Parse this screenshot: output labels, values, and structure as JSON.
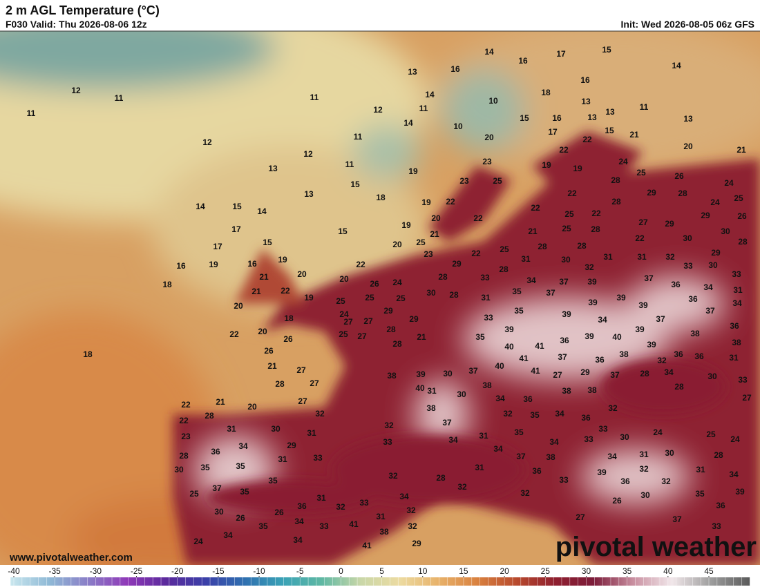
{
  "header": {
    "title": "2 m AGL Temperature (°C)",
    "valid": "F030 Valid: Thu 2026-08-06 12z",
    "init": "Init: Wed 2026-08-05 06z GFS"
  },
  "map": {
    "point_labels": [
      12,
      11,
      11,
      11,
      12,
      12,
      12,
      13,
      13,
      14,
      15,
      14,
      17,
      17,
      15,
      15,
      16,
      19,
      16,
      19,
      18,
      21,
      20,
      21,
      22,
      20,
      19,
      18,
      18,
      20,
      22,
      26,
      26,
      21,
      27,
      27,
      28,
      27,
      22,
      21,
      20,
      28,
      22,
      23,
      31,
      30,
      31,
      32,
      36,
      34,
      29,
      28,
      31,
      33,
      30,
      35,
      35,
      35,
      37,
      35,
      25,
      30,
      26,
      26,
      36,
      31,
      32,
      33,
      31,
      34,
      35,
      33,
      41,
      34,
      24,
      34,
      38,
      41,
      32,
      29,
      34,
      32,
      32,
      33,
      32,
      31,
      40,
      38,
      39,
      30,
      37,
      38,
      38,
      37,
      30,
      34,
      31,
      34,
      35,
      37,
      28,
      32,
      31,
      34,
      36,
      32,
      35,
      34,
      36,
      32,
      33,
      30,
      34,
      33,
      38,
      36,
      33,
      32,
      39,
      34,
      36,
      31,
      32,
      30,
      32,
      24,
      30,
      31,
      28,
      25,
      24,
      34,
      35,
      39,
      36,
      37,
      26,
      27,
      33,
      25,
      24,
      25,
      25,
      26,
      25,
      24,
      22,
      20,
      27,
      27,
      27,
      28,
      29,
      29,
      28,
      21,
      30,
      28,
      28,
      29,
      33,
      28,
      31,
      35,
      34,
      37,
      37,
      39,
      39,
      39,
      39,
      39,
      37,
      37,
      34,
      39,
      33,
      35,
      35,
      39,
      41,
      36,
      39,
      40,
      38,
      39,
      32,
      40,
      41,
      40,
      41,
      37,
      36,
      27,
      29,
      37,
      38,
      38,
      28,
      34,
      36,
      36,
      38,
      31,
      30,
      33,
      27,
      28,
      36,
      38,
      37,
      34,
      36,
      34,
      36,
      31,
      33,
      33,
      30,
      32,
      31,
      31,
      32,
      30,
      31,
      28,
      28,
      28,
      25,
      21,
      22,
      25,
      22,
      25,
      22,
      28,
      22,
      28,
      29,
      28,
      24,
      25,
      29,
      29,
      27,
      22,
      30,
      30,
      26,
      28,
      29,
      26,
      24,
      25,
      24,
      19,
      19,
      22,
      22,
      15,
      21,
      17,
      16,
      13,
      13,
      11,
      13,
      20,
      21,
      16,
      15,
      14,
      17,
      16,
      14,
      16,
      14,
      10,
      18,
      13,
      15,
      10,
      20,
      23,
      23,
      25,
      19,
      22,
      22,
      19,
      20,
      21,
      19,
      20,
      25,
      23,
      18,
      15,
      11,
      11,
      14,
      11,
      13
    ]
  },
  "colorbar": {
    "lim": [
      -40.4,
      50
    ],
    "ticks": [
      -40,
      -35,
      -30,
      -25,
      -20,
      -15,
      -10,
      -5,
      0,
      5,
      10,
      15,
      20,
      25,
      30,
      35,
      40,
      45
    ],
    "colors": [
      "#c9e7ee",
      "#8fb9d6",
      "#8a7dc7",
      "#8f39b8",
      "#5b2a9c",
      "#3b3fa8",
      "#2f6fb0",
      "#3aa2b6",
      "#5fb8a3",
      "#c9d7a8",
      "#ecdba1",
      "#e8b26a",
      "#d9813f",
      "#b84a2d",
      "#8f1f2f",
      "#7c1c3a",
      "#c98fa0",
      "#f1e7ea",
      "#9e9e9e",
      "#5a5a5a"
    ]
  },
  "watermark": "www.pivotalweather.com",
  "logo": "pivotal weather"
}
